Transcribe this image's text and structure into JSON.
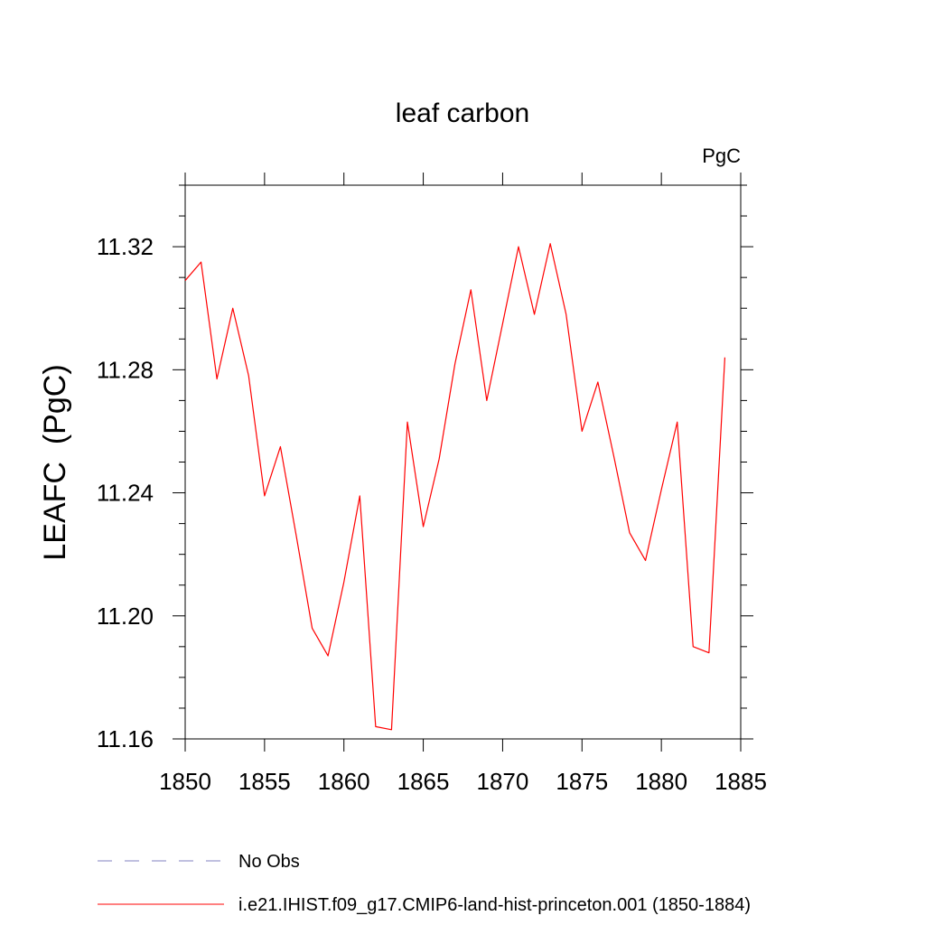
{
  "chart_data": {
    "type": "line",
    "title": "leaf carbon",
    "units_label": "PgC",
    "ylabel": "LEAFC  (PgC)",
    "xlabel": "",
    "xlim": [
      1850,
      1885
    ],
    "ylim": [
      11.16,
      11.34
    ],
    "x_ticks": [
      1850,
      1855,
      1860,
      1865,
      1870,
      1875,
      1880,
      1885
    ],
    "x_tick_labels": [
      "1850",
      "1855",
      "1860",
      "1865",
      "1870",
      "1875",
      "1880",
      "1885"
    ],
    "y_ticks": [
      11.16,
      11.2,
      11.24,
      11.28,
      11.32
    ],
    "y_tick_labels": [
      "11.16",
      "11.20",
      "11.24",
      "11.28",
      "11.32"
    ],
    "grid": false,
    "legend_position": "bottom",
    "series": [
      {
        "name": "i.e21.IHIST.f09_g17.CMIP6-land-hist-princeton.001 (1850-1884)",
        "color": "#ff0000",
        "style": "solid",
        "x": [
          1850,
          1851,
          1852,
          1853,
          1854,
          1855,
          1856,
          1857,
          1858,
          1859,
          1860,
          1861,
          1862,
          1863,
          1864,
          1865,
          1866,
          1867,
          1868,
          1869,
          1870,
          1871,
          1872,
          1873,
          1874,
          1875,
          1876,
          1877,
          1878,
          1879,
          1880,
          1881,
          1882,
          1883,
          1884
        ],
        "values": [
          11.309,
          11.315,
          11.277,
          11.3,
          11.278,
          11.239,
          11.255,
          11.226,
          11.196,
          11.187,
          11.211,
          11.239,
          11.164,
          11.163,
          11.263,
          11.229,
          11.251,
          11.282,
          11.306,
          11.27,
          11.295,
          11.32,
          11.298,
          11.321,
          11.298,
          11.26,
          11.276,
          11.252,
          11.227,
          11.218,
          11.241,
          11.263,
          11.19,
          11.188,
          11.284
        ]
      }
    ],
    "legend": [
      {
        "label": "No Obs",
        "color": "#8080c0",
        "style": "dashed"
      },
      {
        "label": "i.e21.IHIST.f09_g17.CMIP6-land-hist-princeton.001 (1850-1884)",
        "color": "#ff0000",
        "style": "solid"
      }
    ]
  }
}
